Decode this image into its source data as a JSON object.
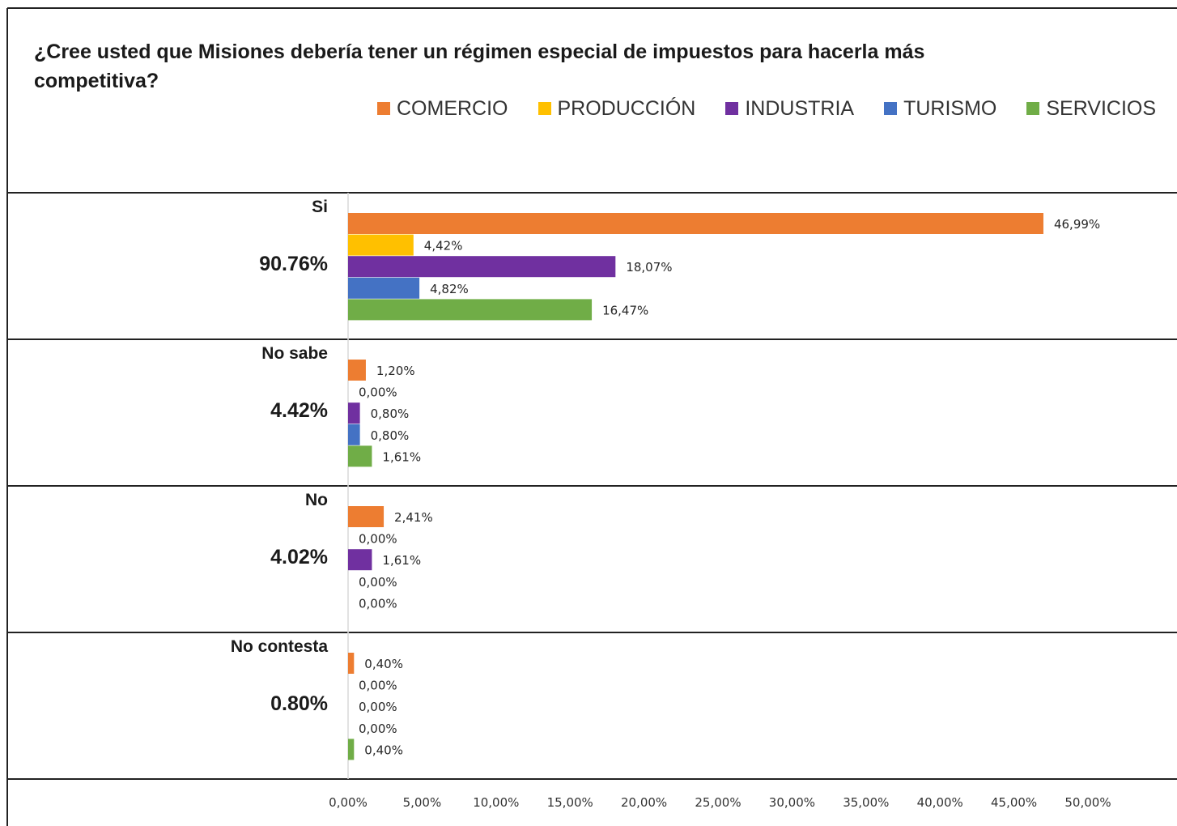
{
  "chart_data": {
    "type": "bar",
    "orientation": "horizontal",
    "title": "¿Cree usted que Misiones debería tener un régimen especial de impuestos para hacerla más competitiva?",
    "legend_position": "top-right",
    "xlim": [
      0,
      50
    ],
    "x_ticks": [
      "0,00%",
      "5,00%",
      "10,00%",
      "15,00%",
      "20,00%",
      "25,00%",
      "30,00%",
      "35,00%",
      "40,00%",
      "45,00%",
      "50,00%"
    ],
    "series": [
      {
        "name": "COMERCIO",
        "color": "#ED7D31"
      },
      {
        "name": "PRODUCCIÓN",
        "color": "#FFC000"
      },
      {
        "name": "INDUSTRIA",
        "color": "#7030A0"
      },
      {
        "name": "TURISMO",
        "color": "#4472C4"
      },
      {
        "name": "SERVICIOS",
        "color": "#70AD47"
      }
    ],
    "categories": [
      {
        "label": "Si",
        "total": "90.76%",
        "values": [
          46.99,
          4.42,
          18.07,
          4.82,
          16.47
        ],
        "data_labels": [
          "46,99%",
          "4,42%",
          "18,07%",
          "4,82%",
          "16,47%"
        ]
      },
      {
        "label": "No sabe",
        "total": "4.42%",
        "values": [
          1.2,
          0.0,
          0.8,
          0.8,
          1.61
        ],
        "data_labels": [
          "1,20%",
          "0,00%",
          "0,80%",
          "0,80%",
          "1,61%"
        ]
      },
      {
        "label": "No",
        "total": "4.02%",
        "values": [
          2.41,
          0.0,
          1.61,
          0.0,
          0.0
        ],
        "data_labels": [
          "2,41%",
          "0,00%",
          "1,61%",
          "0,00%",
          "0,00%"
        ]
      },
      {
        "label": "No contesta",
        "total": "0.80%",
        "values": [
          0.4,
          0.0,
          0.0,
          0.0,
          0.4
        ],
        "data_labels": [
          "0,40%",
          "0,00%",
          "0,00%",
          "0,00%",
          "0,40%"
        ]
      }
    ]
  }
}
